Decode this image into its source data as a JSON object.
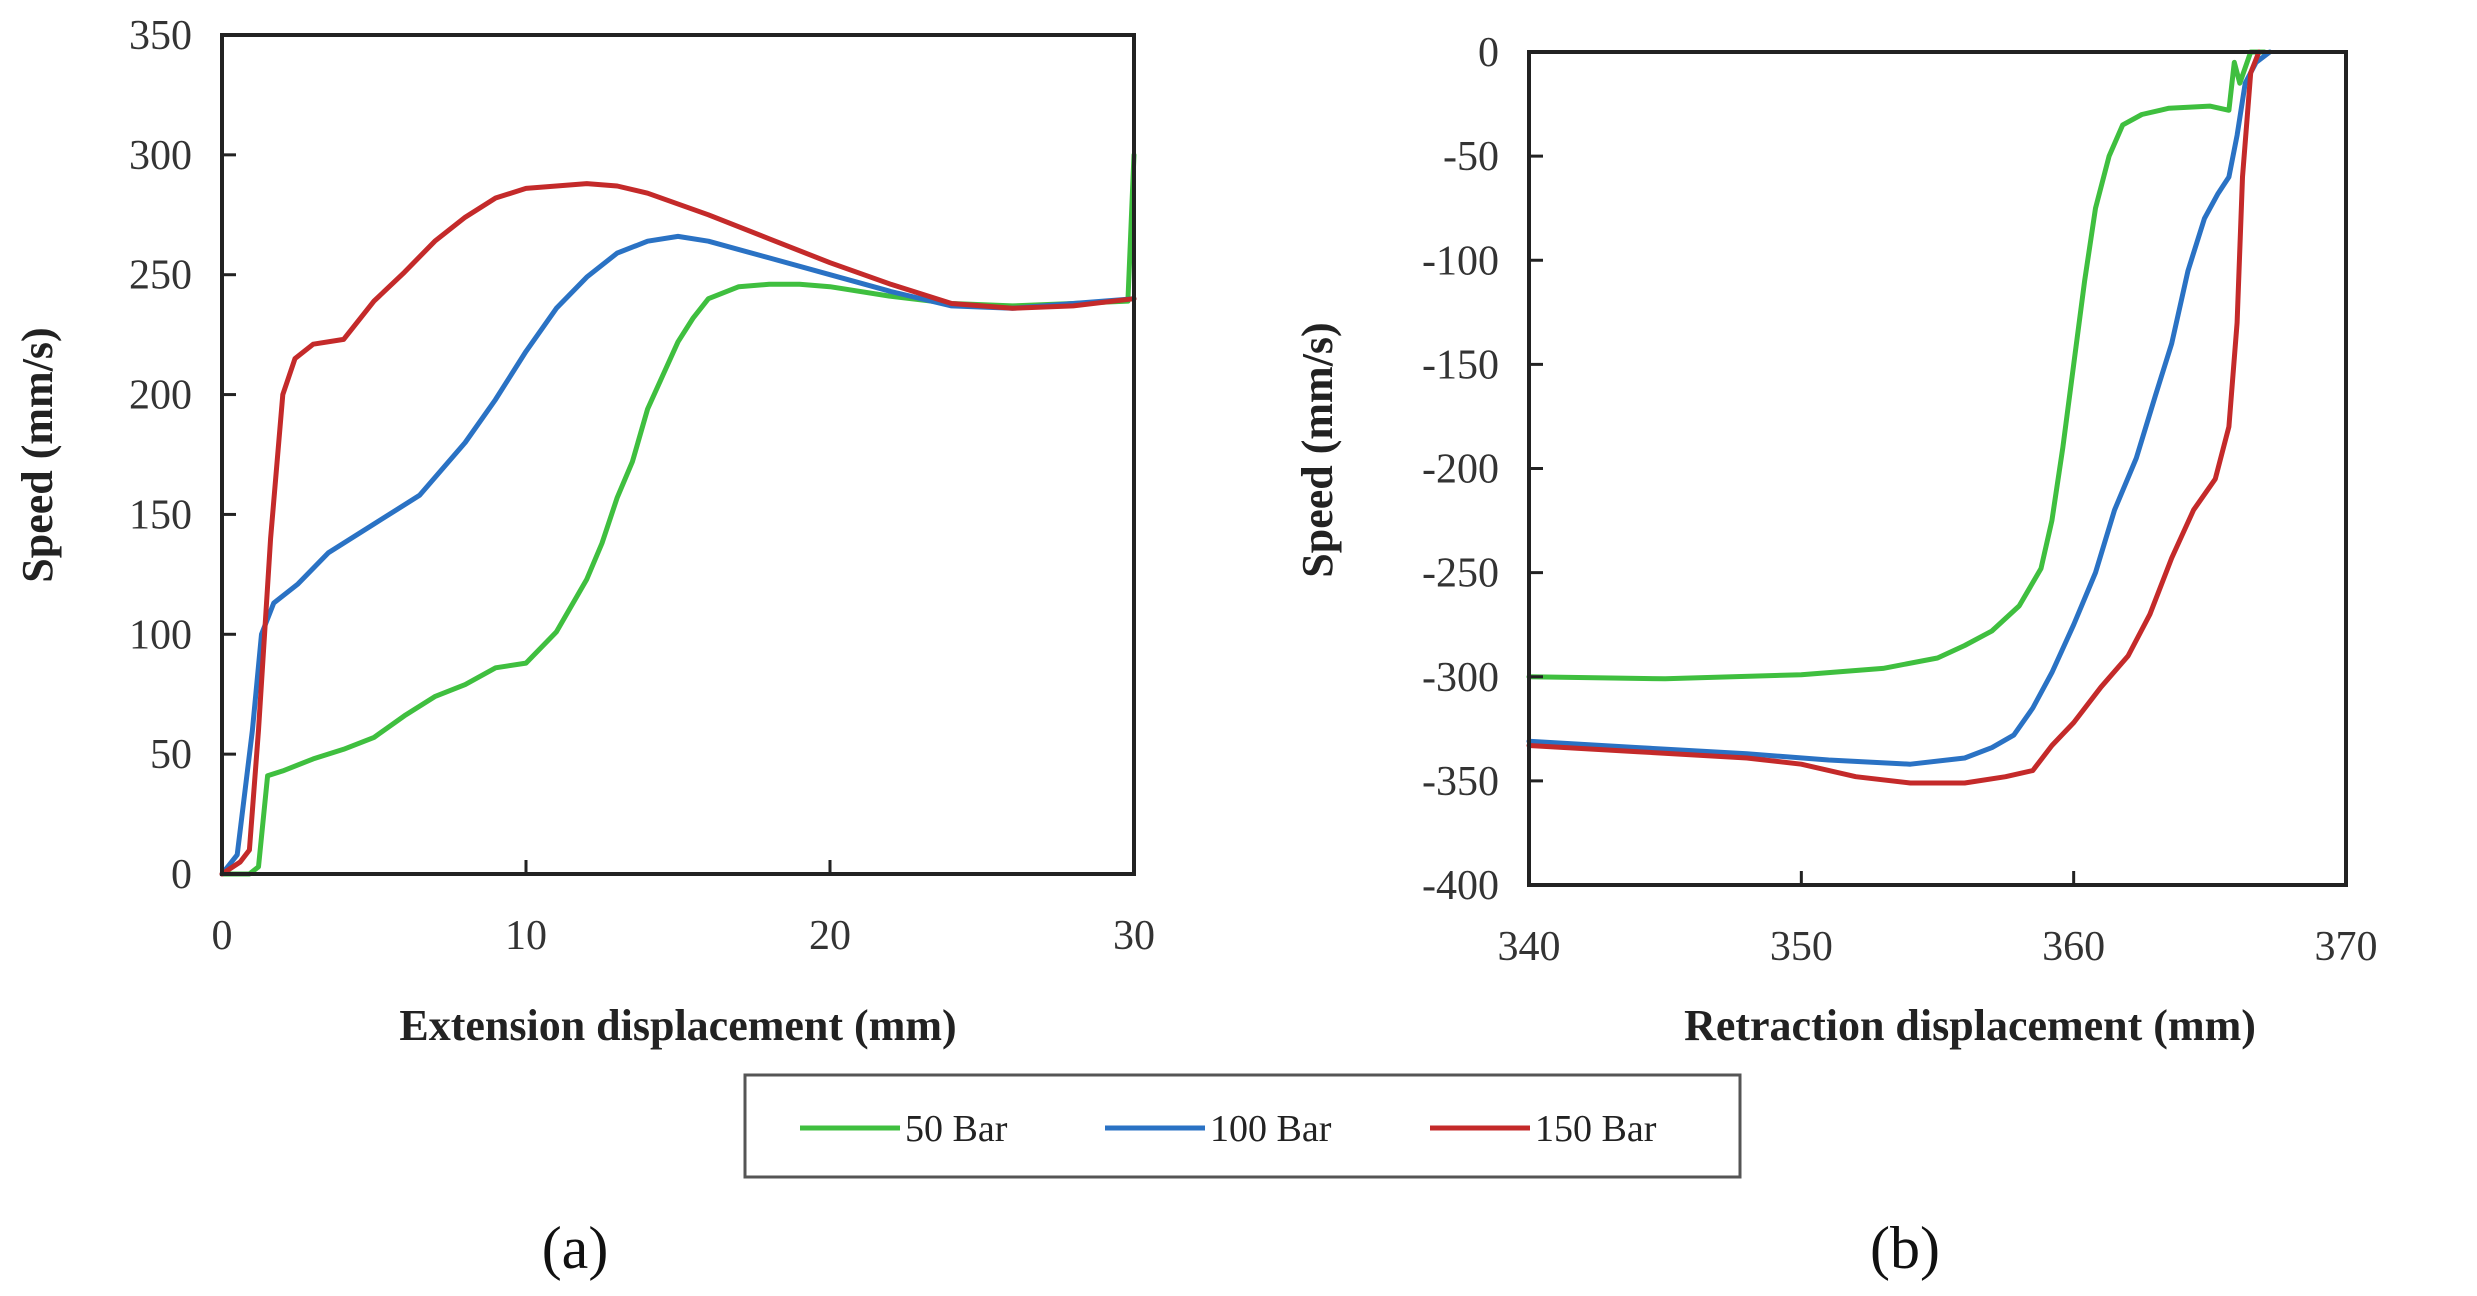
{
  "chart_data": [
    {
      "type": "line",
      "panel": "(a)",
      "xlabel": "Extension displacement (mm)",
      "ylabel": "Speed (mm/s)",
      "xlim": [
        0,
        30
      ],
      "ylim": [
        0,
        350
      ],
      "xticks": [
        0,
        10,
        20,
        30
      ],
      "yticks": [
        0,
        50,
        100,
        150,
        200,
        250,
        300,
        350
      ],
      "series": [
        {
          "name": "50 Bar",
          "color": "#3fbf3f",
          "x": [
            0,
            0.6,
            0.9,
            1.2,
            1.5,
            2,
            3,
            4,
            5,
            6,
            7,
            8,
            9,
            10,
            11,
            12,
            12.5,
            13,
            13.5,
            14,
            14.5,
            15,
            15.5,
            16,
            17,
            18,
            19,
            20,
            22,
            24,
            26,
            28,
            29.8,
            30
          ],
          "y": [
            0,
            0,
            0,
            3,
            41,
            43,
            48,
            52,
            57,
            66,
            74,
            79,
            86,
            88,
            101,
            123,
            138,
            157,
            172,
            194,
            208,
            222,
            232,
            240,
            245,
            246,
            246,
            245,
            241,
            238,
            237,
            238,
            239,
            300
          ]
        },
        {
          "name": "100 Bar",
          "color": "#2a72c4",
          "x": [
            0,
            0.5,
            1,
            1.3,
            1.7,
            2.5,
            3.5,
            5,
            6.5,
            8,
            9,
            10,
            11,
            12,
            13,
            14,
            15,
            16,
            18,
            20,
            22,
            24,
            26,
            28,
            30
          ],
          "y": [
            0,
            8,
            60,
            100,
            113,
            121,
            134,
            146,
            158,
            180,
            198,
            218,
            236,
            249,
            259,
            264,
            266,
            264,
            257,
            250,
            243,
            237,
            236,
            238,
            240
          ]
        },
        {
          "name": "150 Bar",
          "color": "#c42a2a",
          "x": [
            0,
            0.6,
            0.9,
            1.2,
            1.6,
            2,
            2.4,
            3,
            4,
            5,
            6,
            7,
            8,
            9,
            10,
            11,
            12,
            13,
            14,
            16,
            18,
            20,
            22,
            24,
            26,
            28,
            30
          ],
          "y": [
            0,
            5,
            10,
            60,
            140,
            200,
            215,
            221,
            223,
            239,
            251,
            264,
            274,
            282,
            286,
            287,
            288,
            287,
            284,
            275,
            265,
            255,
            246,
            238,
            236,
            237,
            240
          ]
        }
      ]
    },
    {
      "type": "line",
      "panel": "(b)",
      "xlabel": "Retraction displacement (mm)",
      "ylabel": "Speed (mm/s)",
      "xlim": [
        340,
        370
      ],
      "ylim": [
        -400,
        0
      ],
      "xticks": [
        340,
        350,
        360,
        370
      ],
      "yticks": [
        0,
        -50,
        -100,
        -150,
        -200,
        -250,
        -300,
        -350,
        -400
      ],
      "series": [
        {
          "name": "50 Bar",
          "color": "#3fbf3f",
          "x": [
            340,
            345,
            350,
            353,
            355,
            356,
            357,
            358,
            358.8,
            359.2,
            359.6,
            360,
            360.4,
            360.8,
            361.3,
            361.8,
            362.5,
            363.5,
            365,
            365.7,
            365.9,
            366.1,
            366.5,
            367
          ],
          "y": [
            -300,
            -301,
            -299,
            -296,
            -291,
            -285,
            -278,
            -266,
            -248,
            -225,
            -190,
            -150,
            -110,
            -75,
            -50,
            -35,
            -30,
            -27,
            -26,
            -28,
            -5,
            -15,
            0,
            0
          ]
        },
        {
          "name": "100 Bar",
          "color": "#2a72c4",
          "x": [
            340,
            344,
            348,
            351,
            354,
            356,
            357,
            357.8,
            358.5,
            359.2,
            360,
            360.8,
            361.5,
            362.3,
            363,
            363.6,
            364.2,
            364.8,
            365.3,
            365.7,
            366,
            366.3,
            366.7,
            367.2
          ],
          "y": [
            -331,
            -334,
            -337,
            -340,
            -342,
            -339,
            -334,
            -328,
            -315,
            -298,
            -275,
            -250,
            -220,
            -195,
            -165,
            -140,
            -105,
            -80,
            -68,
            -60,
            -40,
            -15,
            -5,
            0
          ]
        },
        {
          "name": "150 Bar",
          "color": "#c42a2a",
          "x": [
            340,
            344,
            348,
            350,
            352,
            354,
            356,
            357.5,
            358.5,
            359.2,
            360,
            361,
            362,
            362.8,
            363.6,
            364.4,
            365.2,
            365.7,
            366,
            366.2,
            366.5,
            366.8
          ],
          "y": [
            -333,
            -336,
            -339,
            -342,
            -348,
            -351,
            -351,
            -348,
            -345,
            -333,
            -322,
            -305,
            -290,
            -270,
            -243,
            -220,
            -205,
            -180,
            -130,
            -60,
            -10,
            0
          ]
        }
      ]
    }
  ],
  "legend": {
    "items": [
      {
        "label": "50 Bar",
        "color": "#3fbf3f"
      },
      {
        "label": "100 Bar",
        "color": "#2a72c4"
      },
      {
        "label": "150 Bar",
        "color": "#c42a2a"
      }
    ]
  },
  "captions": {
    "a": "(a)",
    "b": "(b)"
  }
}
